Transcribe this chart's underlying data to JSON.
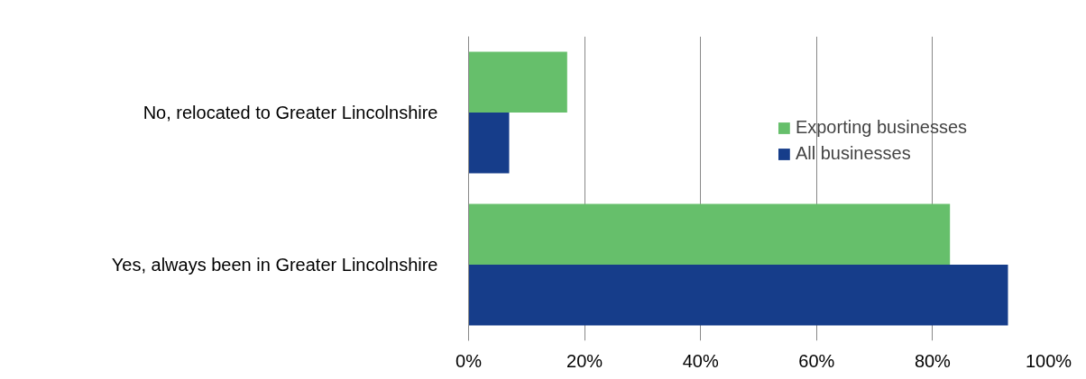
{
  "chart_data": {
    "type": "bar",
    "orientation": "horizontal",
    "categories": [
      "No, relocated to Greater Lincolnshire",
      "Yes, always been in Greater Lincolnshire"
    ],
    "series": [
      {
        "name": "Exporting businesses",
        "color": "#66bf6b",
        "values": [
          17,
          83
        ]
      },
      {
        "name": "All businesses",
        "color": "#163d8a",
        "values": [
          7,
          93
        ]
      }
    ],
    "xlim": [
      0,
      100
    ],
    "xticks": [
      {
        "value": 0,
        "label": "0%"
      },
      {
        "value": 20,
        "label": "20%"
      },
      {
        "value": 40,
        "label": "40%"
      },
      {
        "value": 60,
        "label": "60%"
      },
      {
        "value": 80,
        "label": "80%"
      },
      {
        "value": 100,
        "label": "100%"
      }
    ],
    "grid": "x",
    "legend": "top right"
  }
}
